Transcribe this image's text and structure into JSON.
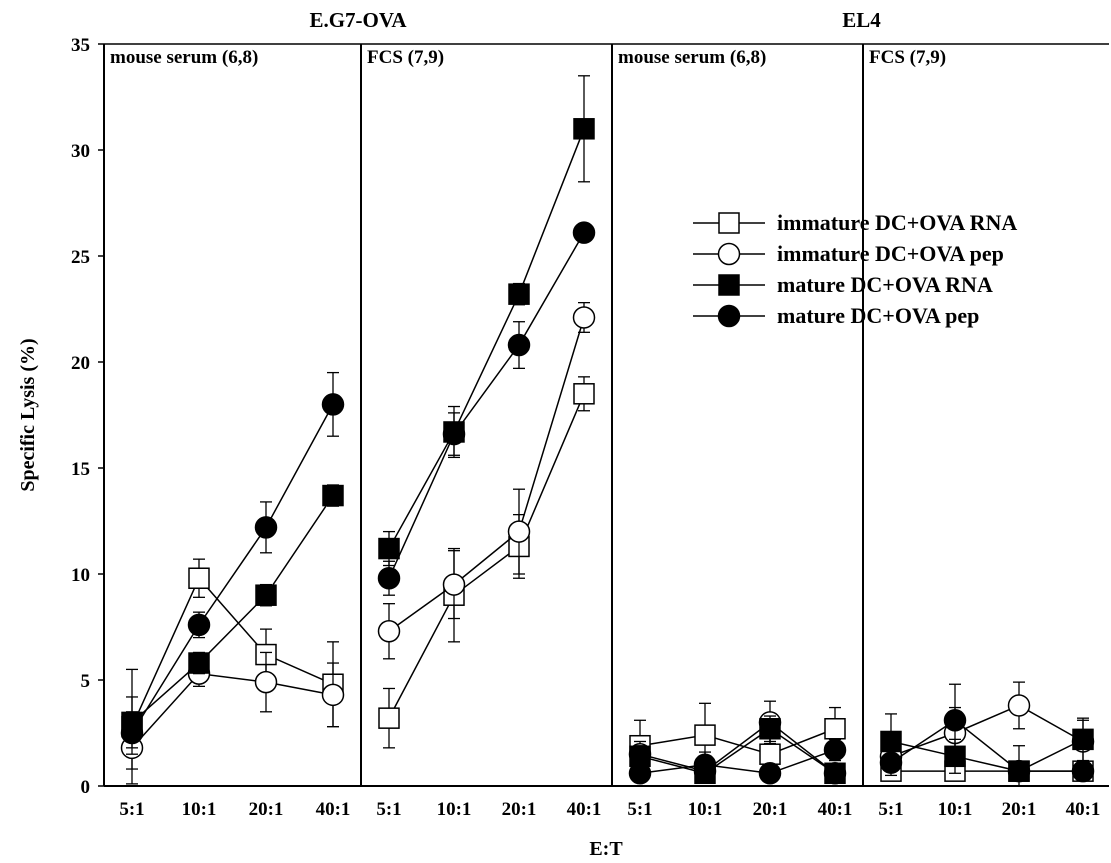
{
  "chart_data": {
    "type": "line",
    "ylabel": "Specific Lysis (%)",
    "xlabel": "E:T",
    "ylim": [
      0,
      35
    ],
    "yticks": [
      0,
      5,
      10,
      15,
      20,
      25,
      30,
      35
    ],
    "categories": [
      "5:1",
      "10:1",
      "20:1",
      "40:1"
    ],
    "groups": [
      {
        "title": "E.G7-OVA",
        "panel_indexes": [
          0,
          1
        ]
      },
      {
        "title": "EL4",
        "panel_indexes": [
          2,
          3
        ]
      }
    ],
    "legend": {
      "position": "top-right"
    },
    "series_styles": [
      {
        "name": "immature DC+OVA RNA",
        "marker": "square",
        "fill": "open"
      },
      {
        "name": "immature DC+OVA pep",
        "marker": "circle",
        "fill": "open"
      },
      {
        "name": "mature DC+OVA RNA",
        "marker": "square",
        "fill": "filled"
      },
      {
        "name": "mature DC+OVA pep",
        "marker": "circle",
        "fill": "filled"
      }
    ],
    "panels": [
      {
        "label": "mouse serum (6,8)",
        "series": [
          {
            "values": [
              2.8,
              9.8,
              6.2,
              4.8
            ],
            "errors": [
              2.7,
              0.9,
              1.2,
              2.0
            ]
          },
          {
            "values": [
              1.8,
              5.3,
              4.9,
              4.3
            ],
            "errors": [
              1.0,
              0.6,
              1.4,
              1.5
            ]
          },
          {
            "values": [
              3.0,
              5.8,
              9.0,
              13.7
            ],
            "errors": [
              1.2,
              0.5,
              0.5,
              0.5
            ]
          },
          {
            "values": [
              2.5,
              7.6,
              12.2,
              18.0
            ],
            "errors": [
              1.0,
              0.6,
              1.2,
              1.5
            ]
          }
        ]
      },
      {
        "label": "FCS (7,9)",
        "series": [
          {
            "values": [
              3.2,
              9.0,
              11.3,
              18.5
            ],
            "errors": [
              1.4,
              2.2,
              1.5,
              0.8
            ]
          },
          {
            "values": [
              7.3,
              9.5,
              12.0,
              22.1
            ],
            "errors": [
              1.3,
              1.6,
              2.0,
              0.7
            ]
          },
          {
            "values": [
              11.2,
              16.7,
              23.2,
              31.0
            ],
            "errors": [
              0.8,
              1.2,
              0.5,
              2.5
            ]
          },
          {
            "values": [
              9.8,
              16.6,
              20.8,
              26.1
            ],
            "errors": [
              0.8,
              1.0,
              1.1,
              0.4
            ]
          }
        ]
      },
      {
        "label": "mouse serum (6,8)",
        "series": [
          {
            "values": [
              1.9,
              2.4,
              1.5,
              2.7
            ],
            "errors": [
              1.2,
              1.5,
              1.3,
              1.0
            ]
          },
          {
            "values": [
              1.5,
              0.7,
              3.0,
              0.6
            ],
            "errors": [
              0.6,
              0.4,
              1.0,
              0.3
            ]
          },
          {
            "values": [
              1.4,
              0.6,
              2.7,
              0.6
            ],
            "errors": [
              0.5,
              0.4,
              0.6,
              0.3
            ]
          },
          {
            "values": [
              0.6,
              1.0,
              0.6,
              1.7
            ],
            "errors": [
              0.3,
              0.6,
              0.3,
              0.5
            ]
          }
        ]
      },
      {
        "label": "FCS (7,9)",
        "series": [
          {
            "values": [
              0.7,
              0.7,
              0.7,
              0.7
            ],
            "errors": [
              0.3,
              0.4,
              0.4,
              0.3
            ]
          },
          {
            "values": [
              1.4,
              2.5,
              3.8,
              2.1
            ],
            "errors": [
              0.6,
              1.2,
              1.1,
              1.0
            ]
          },
          {
            "values": [
              2.1,
              1.4,
              0.7,
              2.2
            ],
            "errors": [
              1.3,
              0.8,
              1.2,
              1.0
            ]
          },
          {
            "values": [
              1.1,
              3.1,
              0.7,
              0.7
            ],
            "errors": [
              0.6,
              1.7,
              0.4,
              0.3
            ]
          }
        ]
      }
    ]
  }
}
